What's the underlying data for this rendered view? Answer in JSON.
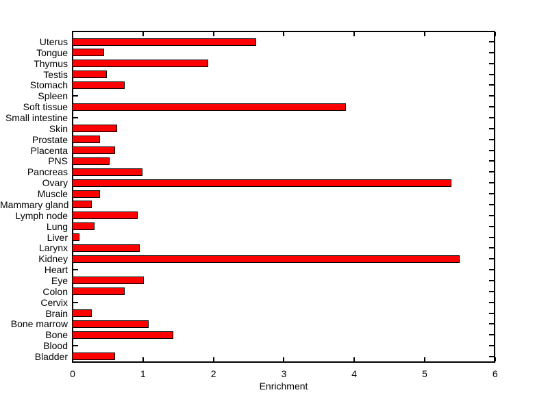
{
  "chart_data": {
    "type": "bar",
    "orientation": "horizontal",
    "xlabel": "Enrichment",
    "ylabel": "",
    "title": "",
    "xlim": [
      0,
      6
    ],
    "xticks": [
      0,
      1,
      2,
      3,
      4,
      5,
      6
    ],
    "xtick_labels": [
      "0",
      "1",
      "2",
      "3",
      "4",
      "5",
      "6"
    ],
    "grid": false,
    "legend": null,
    "bar_color": "#ff0000",
    "bar_edge_color": "#000000",
    "axis_color": "#000000",
    "background_color": "#ffffff",
    "categories": [
      "Uterus",
      "Tongue",
      "Thymus",
      "Testis",
      "Stomach",
      "Spleen",
      "Soft tissue",
      "Small intestine",
      "Skin",
      "Prostate",
      "Placenta",
      "PNS",
      "Pancreas",
      "Ovary",
      "Muscle",
      "Mammary gland",
      "Lymph node",
      "Lung",
      "Liver",
      "Larynx",
      "Kidney",
      "Heart",
      "Eye",
      "Colon",
      "Cervix",
      "Brain",
      "Bone marrow",
      "Bone",
      "Blood",
      "Bladder"
    ],
    "values": [
      2.59,
      0.43,
      1.91,
      0.47,
      0.72,
      0,
      3.87,
      0,
      0.62,
      0.37,
      0.59,
      0.51,
      0.98,
      5.36,
      0.37,
      0.26,
      0.91,
      0.3,
      0.08,
      0.94,
      5.48,
      0,
      1.0,
      0.72,
      0,
      0.26,
      1.07,
      1.42,
      0,
      0.59
    ]
  }
}
